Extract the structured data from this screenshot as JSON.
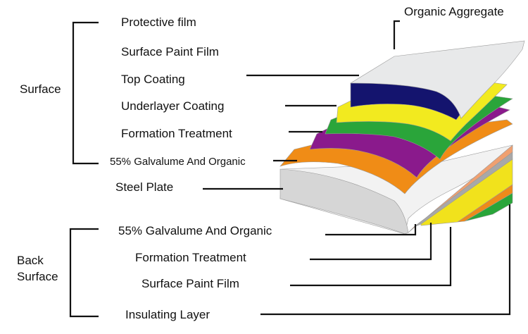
{
  "colors": {
    "line": "#111111",
    "top_surface": "#e8e9ea",
    "navy": "#14146e",
    "yellow": "#f2ea1f",
    "green": "#2aa53a",
    "purple": "#8a1a8c",
    "orange": "#f08c16",
    "steel_light": "#f2f2f2",
    "steel_shade": "#d6d6d6",
    "underside_orange": "#ee8a1a",
    "underside_yellow": "#f1e21c",
    "underside_green": "#2aa53a",
    "salmon": "#f0a070",
    "gray_band": "#a8a8a8"
  },
  "diagram": {
    "top_right_label": "Organic Aggregate",
    "surface_group": {
      "title": "Surface",
      "layers": [
        "Protective film",
        "Surface Paint Film",
        "Top Coating",
        "Underlayer Coating",
        "Formation Treatment",
        "55% Galvalume And Organic"
      ]
    },
    "steel_plate": "Steel Plate",
    "back_surface_group": {
      "title_line1": "Back",
      "title_line2": "Surface",
      "layers": [
        "55% Galvalume And Organic",
        "Formation Treatment",
        "Surface Paint Film",
        "Insulating Layer"
      ]
    }
  }
}
